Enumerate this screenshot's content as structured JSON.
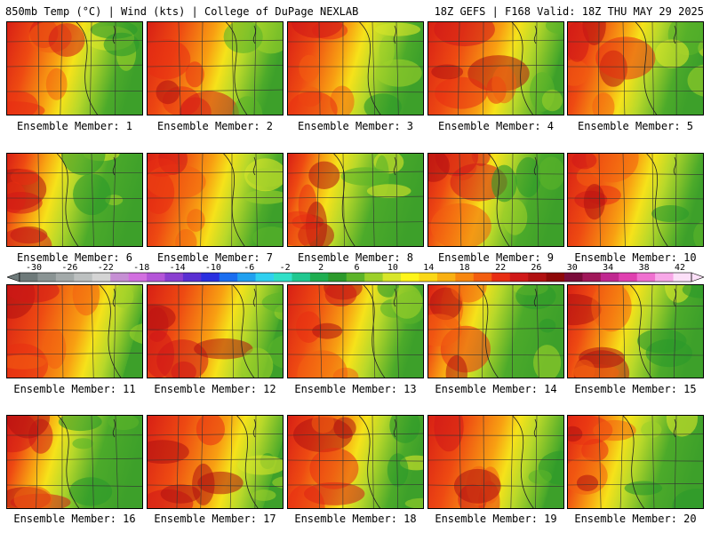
{
  "header": {
    "left": "850mb Temp (°C) | Wind (kts) | College of DuPage NEXLAB",
    "right": "18Z GEFS | F168 Valid: 18Z THU MAY 29 2025"
  },
  "colorbar": {
    "tick_labels": [
      "-30",
      "-26",
      "-22",
      "-18",
      "-14",
      "-10",
      "-6",
      "-2",
      "2",
      "6",
      "10",
      "14",
      "18",
      "22",
      "26",
      "30",
      "34",
      "38",
      "42"
    ],
    "colors": [
      "#6e7a7a",
      "#8a9494",
      "#a3aaaa",
      "#bcc0c0",
      "#d4d4d4",
      "#c68fd4",
      "#d26fe0",
      "#b455d8",
      "#8a3fd0",
      "#5a2fd2",
      "#2a2fe0",
      "#1a6ef0",
      "#20a0f0",
      "#30d0f0",
      "#30e0c8",
      "#20c890",
      "#1fae50",
      "#2c9a2c",
      "#5cb42a",
      "#9cd02a",
      "#d8e62a",
      "#fff51a",
      "#fbd816",
      "#f9b012",
      "#f8870f",
      "#f35e10",
      "#e82d12",
      "#d01818",
      "#b01010",
      "#8e0808",
      "#7a0c3a",
      "#a0185a",
      "#c02890",
      "#e040b0",
      "#f070d0",
      "#f8a8e8",
      "#fce0f8"
    ]
  },
  "panels": [
    {
      "label": "Ensemble Member: 1"
    },
    {
      "label": "Ensemble Member: 2"
    },
    {
      "label": "Ensemble Member: 3"
    },
    {
      "label": "Ensemble Member: 4"
    },
    {
      "label": "Ensemble Member: 5"
    },
    {
      "label": "Ensemble Member: 6"
    },
    {
      "label": "Ensemble Member: 7"
    },
    {
      "label": "Ensemble Member: 8"
    },
    {
      "label": "Ensemble Member: 9"
    },
    {
      "label": "Ensemble Member: 10"
    },
    {
      "label": "Ensemble Member: 11"
    },
    {
      "label": "Ensemble Member: 12"
    },
    {
      "label": "Ensemble Member: 13"
    },
    {
      "label": "Ensemble Member: 14"
    },
    {
      "label": "Ensemble Member: 15"
    },
    {
      "label": "Ensemble Member: 16"
    },
    {
      "label": "Ensemble Member: 17"
    },
    {
      "label": "Ensemble Member: 18"
    },
    {
      "label": "Ensemble Member: 19"
    },
    {
      "label": "Ensemble Member: 20"
    }
  ]
}
